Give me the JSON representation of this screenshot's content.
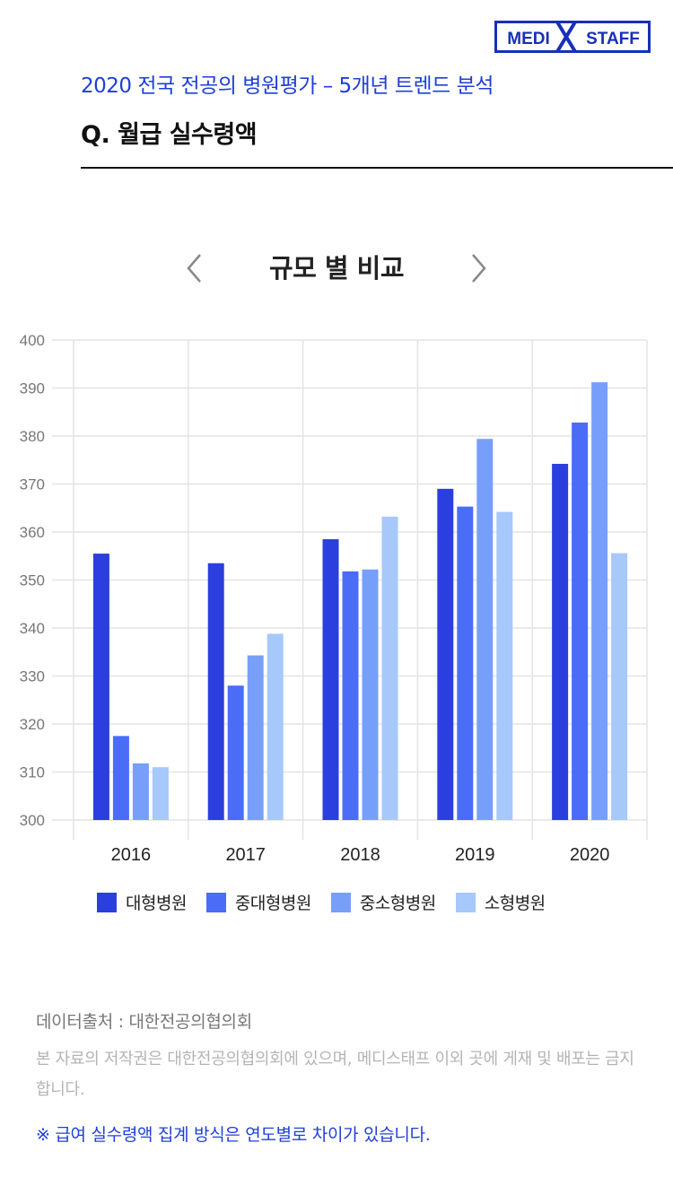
{
  "logo": {
    "left_text": "MEDI",
    "right_text": "STAFF",
    "color": "#1730b8"
  },
  "header": {
    "subtitle": "2020 전국 전공의 병원평가 – 5개년 트렌드 분석",
    "question": "Q. 월급 실수령액"
  },
  "section": {
    "title": "규모 별 비교",
    "prev_icon": "chevron-left-icon",
    "next_icon": "chevron-right-icon"
  },
  "chart_data": {
    "type": "bar",
    "categories": [
      "2016",
      "2017",
      "2018",
      "2019",
      "2020"
    ],
    "series": [
      {
        "name": "대형병원",
        "color": "#2b3fde",
        "values": [
          355.5,
          353.5,
          358.5,
          369.0,
          374.2
        ]
      },
      {
        "name": "중대형병원",
        "color": "#4a6cf7",
        "values": [
          317.5,
          328.0,
          351.8,
          365.3,
          382.8
        ]
      },
      {
        "name": "중소형병원",
        "color": "#779ffa",
        "values": [
          311.8,
          334.3,
          352.2,
          379.4,
          391.2
        ]
      },
      {
        "name": "소형병원",
        "color": "#a6c8fb",
        "values": [
          311.0,
          338.8,
          363.2,
          364.2,
          355.6
        ]
      }
    ],
    "ylim": [
      300,
      400
    ],
    "yticks": [
      "300",
      "310",
      "320",
      "330",
      "340",
      "350",
      "360",
      "370",
      "380",
      "390",
      "400"
    ],
    "grid": true,
    "legend_position": "bottom"
  },
  "footer": {
    "source": "데이터출처 : 대한전공의협의회",
    "copyright": "본 자료의 저작권은 대한전공의협의회에 있으며, 메디스태프 이외 곳에 게재 및 배포는 금지합니다.",
    "note": "※ 급여 실수령액 집계 방식은 연도별로 차이가 있습니다."
  }
}
